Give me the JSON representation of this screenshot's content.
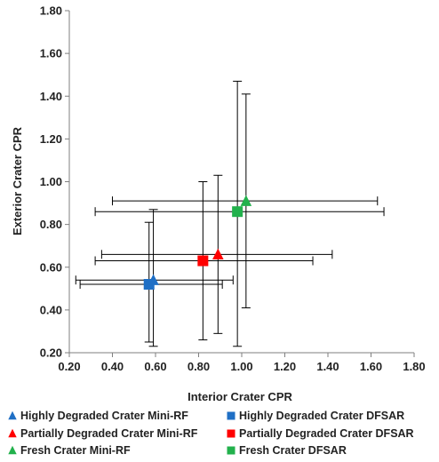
{
  "chart_data": {
    "type": "scatter",
    "xlabel": "Interior Crater CPR",
    "ylabel": "Exterior Crater CPR",
    "xlim": [
      0.2,
      1.8
    ],
    "ylim": [
      0.2,
      1.8
    ],
    "x_ticks": [
      "0.20",
      "0.40",
      "0.60",
      "0.80",
      "1.00",
      "1.20",
      "1.40",
      "1.60",
      "1.80"
    ],
    "y_ticks": [
      "0.20",
      "0.40",
      "0.60",
      "0.80",
      "1.00",
      "1.20",
      "1.40",
      "1.60",
      "1.80"
    ],
    "grid": false,
    "legend_position": "bottom",
    "series": [
      {
        "name": "Highly Degraded Crater Mini-RF",
        "marker": "triangle",
        "color": "#1F6FC5",
        "x": 0.59,
        "y": 0.54,
        "x_err": [
          0.23,
          0.96
        ],
        "y_err": [
          0.23,
          0.87
        ]
      },
      {
        "name": "Highly Degraded Crater DFSAR",
        "marker": "square",
        "color": "#1F6FC5",
        "x": 0.57,
        "y": 0.52,
        "x_err": [
          0.25,
          0.91
        ],
        "y_err": [
          0.25,
          0.81
        ]
      },
      {
        "name": "Partially Degraded Crater Mini-RF",
        "marker": "triangle",
        "color": "#FF0000",
        "x": 0.89,
        "y": 0.66,
        "x_err": [
          0.35,
          1.42
        ],
        "y_err": [
          0.29,
          1.03
        ]
      },
      {
        "name": "Partially Degraded Crater DFSAR",
        "marker": "square",
        "color": "#FF0000",
        "x": 0.82,
        "y": 0.63,
        "x_err": [
          0.32,
          1.33
        ],
        "y_err": [
          0.26,
          1.0
        ]
      },
      {
        "name": "Fresh Crater Mini-RF",
        "marker": "triangle",
        "color": "#22B14C",
        "x": 1.02,
        "y": 0.91,
        "x_err": [
          0.4,
          1.63
        ],
        "y_err": [
          0.41,
          1.41
        ]
      },
      {
        "name": "Fresh Crater DFSAR",
        "marker": "square",
        "color": "#22B14C",
        "x": 0.98,
        "y": 0.86,
        "x_err": [
          0.32,
          1.66
        ],
        "y_err": [
          0.23,
          1.47
        ]
      }
    ]
  }
}
